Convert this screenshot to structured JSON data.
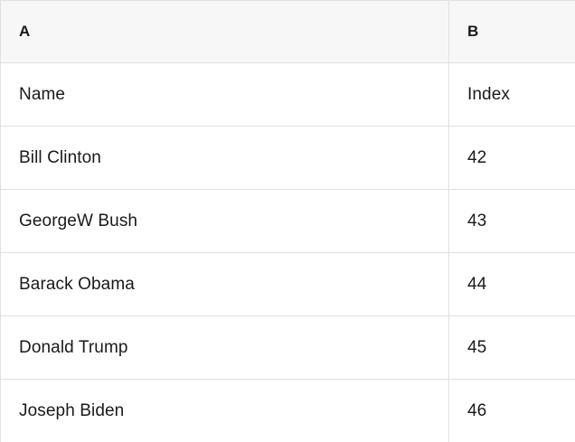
{
  "table": {
    "columns": [
      {
        "id": "A",
        "label": "A"
      },
      {
        "id": "B",
        "label": "B"
      }
    ],
    "rows": [
      {
        "a": "Name",
        "b": "Index"
      },
      {
        "a": "Bill Clinton",
        "b": "42"
      },
      {
        "a": "GeorgeW Bush",
        "b": "43"
      },
      {
        "a": "Barack Obama",
        "b": "44"
      },
      {
        "a": "Donald Trump",
        "b": "45"
      },
      {
        "a": "Joseph Biden",
        "b": "46"
      }
    ],
    "colors": {
      "header_bg": "#f7f7f7",
      "row_bg": "#ffffff",
      "border": "#e0e0e0",
      "text": "#1a1a1a"
    }
  }
}
